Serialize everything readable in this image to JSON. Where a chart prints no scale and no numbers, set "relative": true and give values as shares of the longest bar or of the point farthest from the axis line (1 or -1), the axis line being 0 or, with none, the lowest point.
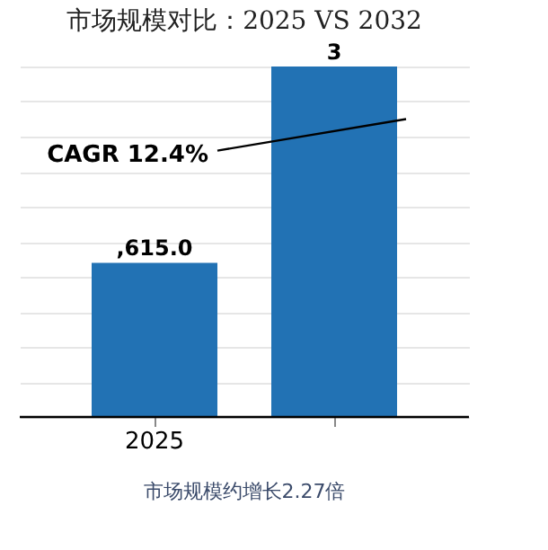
{
  "chart_data": {
    "type": "bar",
    "title": "市场规模对比：2025 VS 2032",
    "categories": [
      "2025",
      null
    ],
    "relative": true,
    "series": [
      {
        "color": "#2272b4",
        "values": [
          0.44,
          1
        ]
      }
    ],
    "value_labels": [
      ",615.0",
      "3"
    ],
    "grid": "y",
    "annotations": [
      "CAGR 12.4%",
      "市场规模约增长2.27倍"
    ]
  }
}
